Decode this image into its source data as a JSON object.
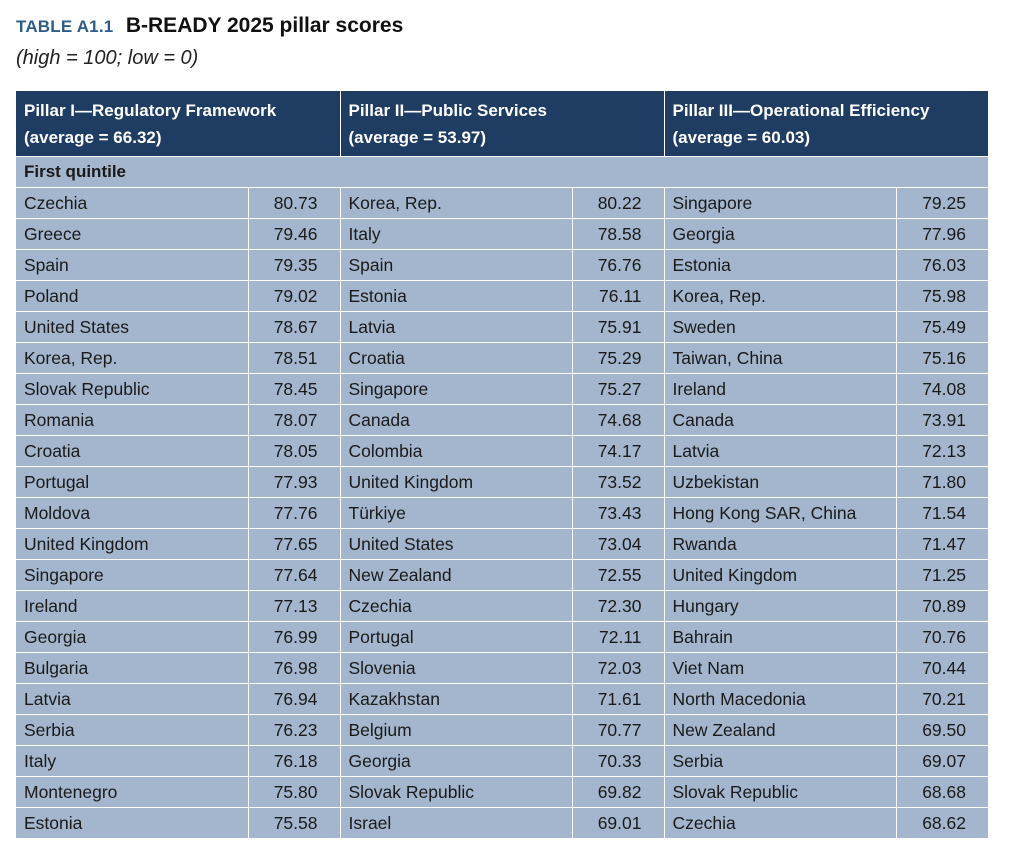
{
  "header": {
    "table_label": "TABLE A1.1",
    "title": "B-READY 2025 pillar scores",
    "subtitle": "(high = 100; low = 0)"
  },
  "columns": [
    {
      "pillar": "Pillar I—Regulatory Framework",
      "average": "(average = 66.32)"
    },
    {
      "pillar": "Pillar II—Public Services",
      "average": "(average = 53.97)"
    },
    {
      "pillar": "Pillar III—Operational Efficiency",
      "average": "(average = 60.03)"
    }
  ],
  "section_label": "First quintile",
  "rows": [
    {
      "p1_name": "Czechia",
      "p1_score": "80.73",
      "p2_name": "Korea, Rep.",
      "p2_score": "80.22",
      "p3_name": "Singapore",
      "p3_score": "79.25"
    },
    {
      "p1_name": "Greece",
      "p1_score": "79.46",
      "p2_name": "Italy",
      "p2_score": "78.58",
      "p3_name": "Georgia",
      "p3_score": "77.96"
    },
    {
      "p1_name": "Spain",
      "p1_score": "79.35",
      "p2_name": "Spain",
      "p2_score": "76.76",
      "p3_name": "Estonia",
      "p3_score": "76.03"
    },
    {
      "p1_name": "Poland",
      "p1_score": "79.02",
      "p2_name": "Estonia",
      "p2_score": "76.11",
      "p3_name": "Korea, Rep.",
      "p3_score": "75.98"
    },
    {
      "p1_name": "United States",
      "p1_score": "78.67",
      "p2_name": "Latvia",
      "p2_score": "75.91",
      "p3_name": "Sweden",
      "p3_score": "75.49"
    },
    {
      "p1_name": "Korea, Rep.",
      "p1_score": "78.51",
      "p2_name": "Croatia",
      "p2_score": "75.29",
      "p3_name": "Taiwan, China",
      "p3_score": "75.16"
    },
    {
      "p1_name": "Slovak Republic",
      "p1_score": "78.45",
      "p2_name": "Singapore",
      "p2_score": "75.27",
      "p3_name": "Ireland",
      "p3_score": "74.08"
    },
    {
      "p1_name": "Romania",
      "p1_score": "78.07",
      "p2_name": "Canada",
      "p2_score": "74.68",
      "p3_name": "Canada",
      "p3_score": "73.91"
    },
    {
      "p1_name": "Croatia",
      "p1_score": "78.05",
      "p2_name": "Colombia",
      "p2_score": "74.17",
      "p3_name": "Latvia",
      "p3_score": "72.13"
    },
    {
      "p1_name": "Portugal",
      "p1_score": "77.93",
      "p2_name": "United Kingdom",
      "p2_score": "73.52",
      "p3_name": "Uzbekistan",
      "p3_score": "71.80"
    },
    {
      "p1_name": "Moldova",
      "p1_score": "77.76",
      "p2_name": "Türkiye",
      "p2_score": "73.43",
      "p3_name": "Hong Kong SAR, China",
      "p3_score": "71.54"
    },
    {
      "p1_name": "United Kingdom",
      "p1_score": "77.65",
      "p2_name": "United States",
      "p2_score": "73.04",
      "p3_name": "Rwanda",
      "p3_score": "71.47"
    },
    {
      "p1_name": "Singapore",
      "p1_score": "77.64",
      "p2_name": "New Zealand",
      "p2_score": "72.55",
      "p3_name": "United Kingdom",
      "p3_score": "71.25"
    },
    {
      "p1_name": "Ireland",
      "p1_score": "77.13",
      "p2_name": "Czechia",
      "p2_score": "72.30",
      "p3_name": "Hungary",
      "p3_score": "70.89"
    },
    {
      "p1_name": "Georgia",
      "p1_score": "76.99",
      "p2_name": "Portugal",
      "p2_score": "72.11",
      "p3_name": "Bahrain",
      "p3_score": "70.76"
    },
    {
      "p1_name": "Bulgaria",
      "p1_score": "76.98",
      "p2_name": "Slovenia",
      "p2_score": "72.03",
      "p3_name": "Viet Nam",
      "p3_score": "70.44"
    },
    {
      "p1_name": "Latvia",
      "p1_score": "76.94",
      "p2_name": "Kazakhstan",
      "p2_score": "71.61",
      "p3_name": "North Macedonia",
      "p3_score": "70.21"
    },
    {
      "p1_name": "Serbia",
      "p1_score": "76.23",
      "p2_name": "Belgium",
      "p2_score": "70.77",
      "p3_name": "New Zealand",
      "p3_score": "69.50"
    },
    {
      "p1_name": "Italy",
      "p1_score": "76.18",
      "p2_name": "Georgia",
      "p2_score": "70.33",
      "p3_name": "Serbia",
      "p3_score": "69.07"
    },
    {
      "p1_name": "Montenegro",
      "p1_score": "75.80",
      "p2_name": "Slovak Republic",
      "p2_score": "69.82",
      "p3_name": "Slovak Republic",
      "p3_score": "68.68"
    },
    {
      "p1_name": "Estonia",
      "p1_score": "75.58",
      "p2_name": "Israel",
      "p2_score": "69.01",
      "p3_name": "Czechia",
      "p3_score": "68.62"
    }
  ],
  "colors": {
    "header_bg": "#1f3c63",
    "body_bg": "#a3b6cd",
    "table_label": "#2e5c8a"
  }
}
